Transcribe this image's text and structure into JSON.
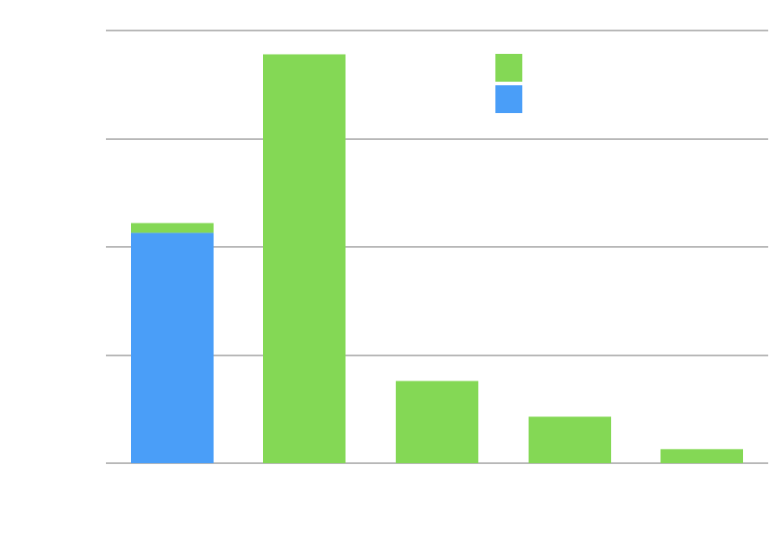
{
  "chart_data": {
    "type": "bar",
    "stacked": true,
    "categories": [
      "",
      "",
      "",
      "",
      ""
    ],
    "series": [
      {
        "color": "#4A9EF8",
        "values": [
          213,
          0,
          0,
          0,
          0
        ]
      },
      {
        "color": "#84D855",
        "values": [
          9,
          378,
          76,
          43,
          13
        ]
      }
    ],
    "ylim": [
      0,
      400
    ],
    "yticks": [
      0,
      100,
      200,
      300,
      400
    ],
    "grid": true,
    "legend": {
      "placement": "top-center",
      "entries": [
        {
          "color": "#84D855"
        },
        {
          "color": "#4A9EF8"
        }
      ]
    }
  }
}
